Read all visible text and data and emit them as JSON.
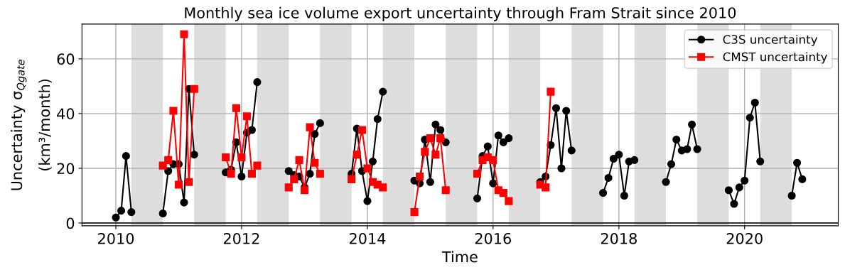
{
  "chart_data": {
    "type": "line",
    "title": "Monthly sea ice volume export uncertainty through Fram Strait since 2010",
    "xlabel": "Time",
    "ylabel": "Uncertainty σ$_{Qgate}$\n(km³/month)",
    "x": [
      "2010-01",
      "2010-02",
      "2010-03",
      "2010-04",
      "2010-07",
      "2010-10",
      "2010-11",
      "2010-12",
      "2011-01",
      "2011-02",
      "2011-03",
      "2011-04",
      "2011-07",
      "2011-10",
      "2011-11",
      "2011-12",
      "2012-01",
      "2012-02",
      "2012-03",
      "2012-04",
      "2012-07",
      "2012-10",
      "2012-11",
      "2012-12",
      "2013-01",
      "2013-02",
      "2013-03",
      "2013-04",
      "2013-07",
      "2013-10",
      "2013-11",
      "2013-12",
      "2014-01",
      "2014-02",
      "2014-03",
      "2014-04",
      "2014-07",
      "2014-10",
      "2014-11",
      "2014-12",
      "2015-01",
      "2015-02",
      "2015-03",
      "2015-04",
      "2015-07",
      "2015-10",
      "2015-11",
      "2015-12",
      "2016-01",
      "2016-02",
      "2016-03",
      "2016-04",
      "2016-07",
      "2016-10",
      "2016-11",
      "2016-12",
      "2017-01",
      "2017-02",
      "2017-03",
      "2017-04",
      "2017-07",
      "2017-10",
      "2017-11",
      "2017-12",
      "2018-01",
      "2018-02",
      "2018-03",
      "2018-04",
      "2018-07",
      "2018-10",
      "2018-11",
      "2018-12",
      "2019-01",
      "2019-02",
      "2019-03",
      "2019-04",
      "2019-07",
      "2019-10",
      "2019-11",
      "2019-12",
      "2020-01",
      "2020-02",
      "2020-03",
      "2020-04",
      "2020-07",
      "2020-10",
      "2020-11",
      "2020-12"
    ],
    "series": [
      {
        "name": "C3S uncertainty",
        "color": "#000000",
        "marker": "circle",
        "values": [
          2,
          4.5,
          24.5,
          4,
          null,
          3.5,
          19,
          21.5,
          21.5,
          7.5,
          49,
          25,
          null,
          18.5,
          19.5,
          29.5,
          17,
          33,
          34,
          51.5,
          null,
          19,
          17.5,
          17,
          13,
          18,
          32.5,
          36.5,
          null,
          18,
          34.5,
          19,
          8,
          22.5,
          38,
          48,
          null,
          15.5,
          14.5,
          30.5,
          15,
          36,
          34,
          29.5,
          null,
          9,
          24.5,
          28,
          14.5,
          32,
          29.5,
          31,
          null,
          15,
          17,
          28.5,
          42,
          20,
          41,
          26.5,
          null,
          11,
          16.5,
          23.5,
          25,
          10,
          22.5,
          23,
          null,
          15,
          21.5,
          30.5,
          26.5,
          27,
          36,
          27,
          null,
          12,
          7,
          13,
          15.5,
          38.5,
          44,
          22.5,
          null,
          10,
          22,
          16
        ]
      },
      {
        "name": "CMST uncertainty",
        "color": "#ff0000",
        "marker": "square",
        "values": [
          null,
          null,
          null,
          null,
          null,
          21,
          23,
          41,
          14,
          69,
          15,
          49,
          null,
          24,
          18,
          42,
          24,
          39,
          18,
          21,
          null,
          13,
          16,
          23,
          12,
          35,
          22,
          18,
          null,
          16,
          25,
          34,
          20,
          15,
          14,
          13,
          null,
          4,
          17,
          26,
          31,
          25,
          31,
          12,
          null,
          18,
          23,
          24,
          23,
          12,
          11,
          8,
          null,
          14,
          13,
          48,
          null,
          null,
          null,
          null,
          null,
          null,
          null,
          null,
          null,
          null,
          null,
          null,
          null,
          null,
          null,
          null,
          null,
          null,
          null,
          null,
          null,
          null,
          null,
          null,
          null,
          null,
          null,
          null,
          null,
          null,
          null,
          null
        ]
      }
    ],
    "xlim": [
      "2009-06-18",
      "2021-06-28"
    ],
    "xticks": [
      "2010",
      "2012",
      "2014",
      "2016",
      "2018",
      "2020"
    ],
    "ylim": [
      -1,
      72.7
    ],
    "yticks": [
      0,
      20,
      40,
      60
    ],
    "ref_lines": [
      {
        "axis": "y",
        "value": 0,
        "color": "#000000"
      }
    ],
    "bands": [
      {
        "axis": "x",
        "from": "2010-04",
        "to": "2010-10",
        "color": "#dddddd"
      },
      {
        "axis": "x",
        "from": "2011-04",
        "to": "2011-10",
        "color": "#dddddd"
      },
      {
        "axis": "x",
        "from": "2012-04",
        "to": "2012-10",
        "color": "#dddddd"
      },
      {
        "axis": "x",
        "from": "2013-04",
        "to": "2013-10",
        "color": "#dddddd"
      },
      {
        "axis": "x",
        "from": "2014-04",
        "to": "2014-10",
        "color": "#dddddd"
      },
      {
        "axis": "x",
        "from": "2015-04",
        "to": "2015-10",
        "color": "#dddddd"
      },
      {
        "axis": "x",
        "from": "2016-04",
        "to": "2016-10",
        "color": "#dddddd"
      },
      {
        "axis": "x",
        "from": "2017-04",
        "to": "2017-10",
        "color": "#dddddd"
      },
      {
        "axis": "x",
        "from": "2018-04",
        "to": "2018-10",
        "color": "#dddddd"
      },
      {
        "axis": "x",
        "from": "2019-04",
        "to": "2019-10",
        "color": "#dddddd"
      },
      {
        "axis": "x",
        "from": "2020-04",
        "to": "2020-10",
        "color": "#dddddd"
      }
    ],
    "grid": true,
    "legend": "top right",
    "line_style": "solid"
  }
}
